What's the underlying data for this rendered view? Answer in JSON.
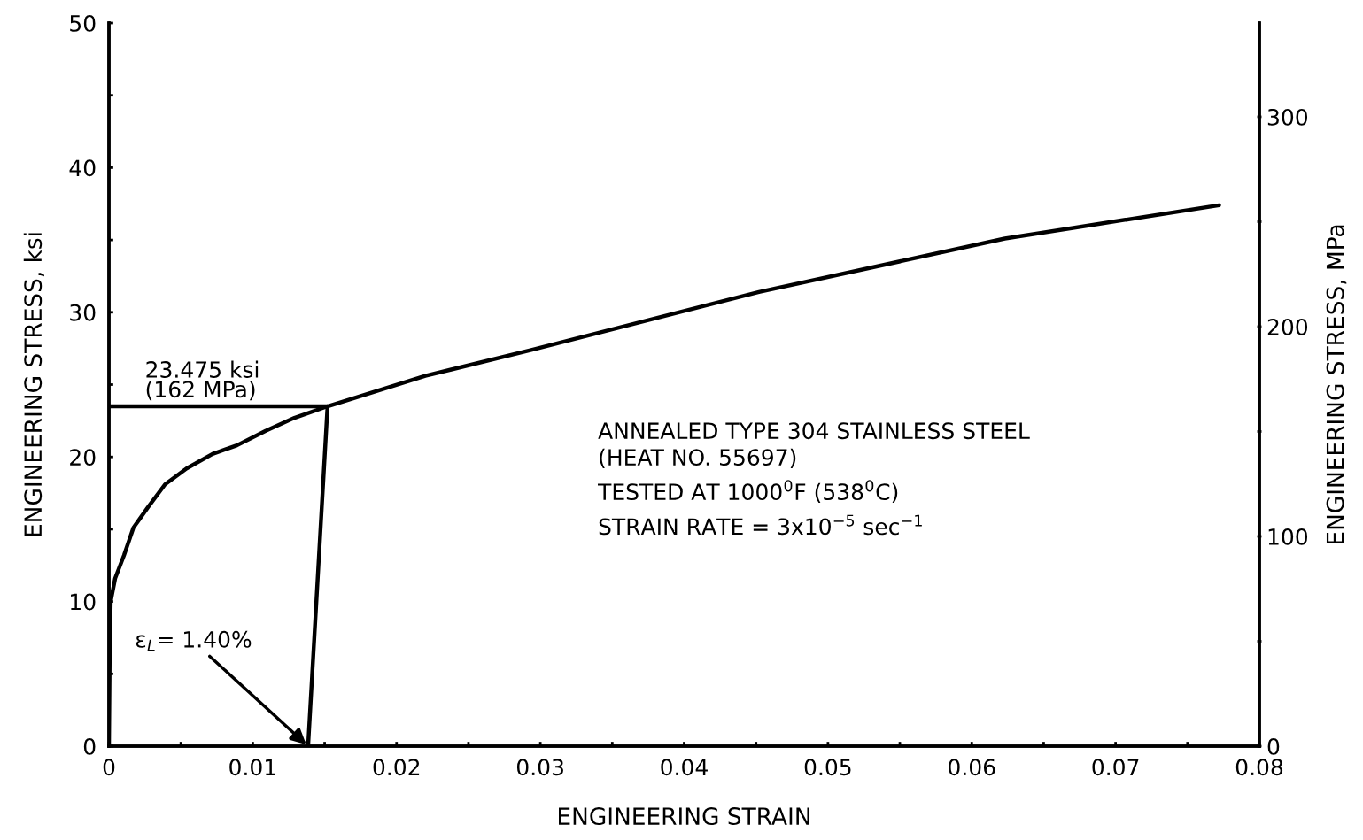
{
  "chart_data": {
    "type": "line",
    "xlabel": "ENGINEERING STRAIN",
    "ylabel": "ENGINEERING STRESS, ksi",
    "y2label": "ENGINEERING STRESS, MPa",
    "series": [
      {
        "color": "#000000",
        "x": [
          0,
          5e-05,
          0.00012,
          0.00043,
          0.00105,
          0.0017,
          0.0027,
          0.0039,
          0.0054,
          0.0072,
          0.0089,
          0.0109,
          0.0129,
          0.0152,
          0.022,
          0.02937,
          0.0452,
          0.0623,
          0.0772
        ],
        "values": [
          0,
          6,
          10,
          11.6,
          13.2,
          15.1,
          16.5,
          18.1,
          19.2,
          20.2,
          20.8,
          21.8,
          22.7,
          23.5,
          25.6,
          27.4,
          31.4,
          35.1,
          37.4
        ]
      },
      {
        "color": "#000000",
        "x": [
          0.01385,
          0.0152
        ],
        "values": [
          0,
          23.5
        ]
      },
      {
        "color": "#000000",
        "x": [
          0,
          0.0152
        ],
        "values": [
          23.5,
          23.5
        ]
      }
    ],
    "xlim": [
      0,
      0.08
    ],
    "xticks": [
      0,
      {
        "value": 0.005,
        "label": null
      },
      0.01,
      {
        "value": 0.015,
        "label": null
      },
      0.02,
      {
        "value": 0.025,
        "label": null
      },
      0.03,
      {
        "value": 0.035,
        "label": null
      },
      0.04,
      {
        "value": 0.045,
        "label": null
      },
      0.05,
      {
        "value": 0.055,
        "label": null
      },
      0.06,
      {
        "value": 0.065,
        "label": null
      },
      0.07,
      {
        "value": 0.075,
        "label": null
      },
      0.08
    ],
    "ylim": [
      0,
      50
    ],
    "yticks": [
      0,
      {
        "value": 5,
        "label": null
      },
      10,
      {
        "value": 15,
        "label": null
      },
      20,
      {
        "value": 25,
        "label": null
      },
      30,
      {
        "value": 35,
        "label": null
      },
      40,
      {
        "value": 45,
        "label": null
      },
      50
    ],
    "y2lim": [
      0,
      344.7
    ],
    "y2ticks": [
      0,
      {
        "value": 50,
        "label": null
      },
      100,
      {
        "value": 150,
        "label": null
      },
      200,
      {
        "value": 250,
        "label": null
      },
      300
    ],
    "grid": false,
    "legend": false,
    "marker": "none",
    "line_style": "solid",
    "annotations": [
      "23.475 ksi\n(162 MPa)",
      {
        "text": "ε$_{L}$= 1.40%",
        "x": 0.01385,
        "y": 0
      },
      "ANNEALED TYPE 304 STAINLESS STEEL\n(HEAT NO. 55697)",
      "TESTED AT 1000$^{0}$F (538$^{0}$C)",
      "STRAIN RATE = 3x10$^{−5}$ sec$^{−1}$"
    ]
  }
}
